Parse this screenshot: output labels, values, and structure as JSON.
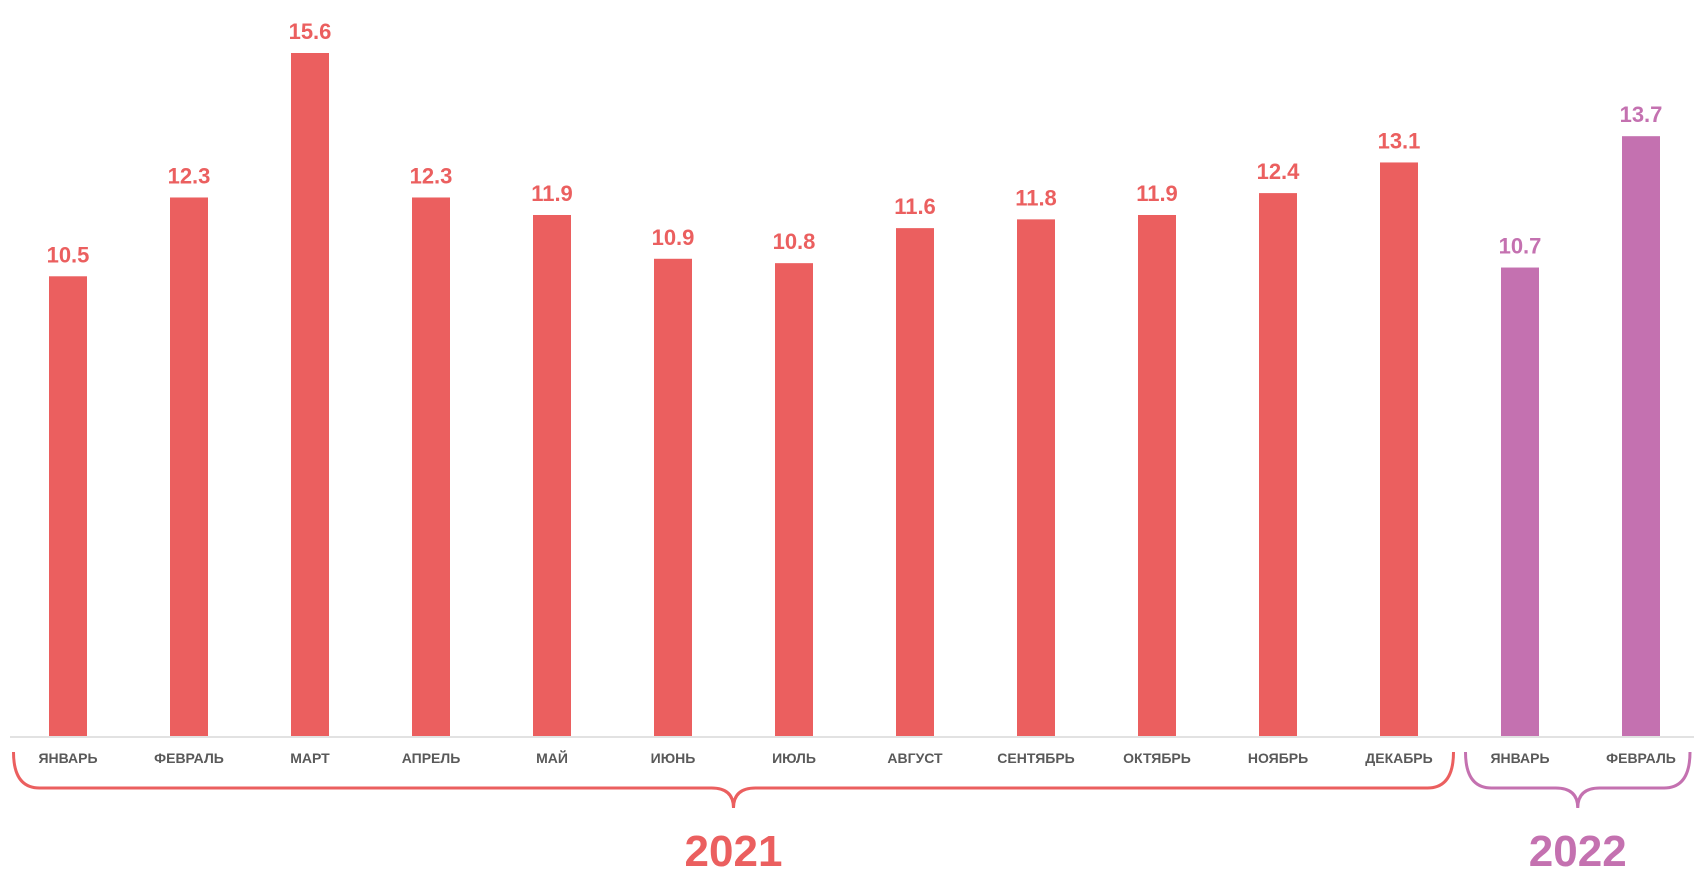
{
  "chart_data": {
    "type": "bar",
    "categories": [
      "ЯНВАРЬ",
      "ФЕВРАЛЬ",
      "МАРТ",
      "АПРЕЛЬ",
      "МАЙ",
      "ИЮНЬ",
      "ИЮЛЬ",
      "АВГУСТ",
      "СЕНТЯБРЬ",
      "ОКТЯБРЬ",
      "НОЯБРЬ",
      "ДЕКАБРЬ",
      "ЯНВАРЬ",
      "ФЕВРАЛЬ"
    ],
    "values": [
      10.5,
      12.3,
      15.6,
      12.3,
      11.9,
      10.9,
      10.8,
      11.6,
      11.8,
      11.9,
      12.4,
      13.1,
      10.7,
      13.7
    ],
    "value_labels": [
      "10.5",
      "12.3",
      "15.6",
      "12.3",
      "11.9",
      "10.9",
      "10.8",
      "11.6",
      "11.8",
      "11.9",
      "12.4",
      "13.1",
      "10.7",
      "13.7"
    ],
    "groups": [
      {
        "label": "2021",
        "start": 0,
        "end": 11,
        "color": "#EB5F5F"
      },
      {
        "label": "2022",
        "start": 12,
        "end": 13,
        "color": "#C471B0"
      }
    ],
    "title": "",
    "xlabel": "",
    "ylabel": "",
    "ylim": [
      0,
      15.6
    ],
    "grid": false,
    "legend": "none"
  },
  "colors": {
    "axis": "#d9d9d9",
    "category_text": "#595959"
  }
}
